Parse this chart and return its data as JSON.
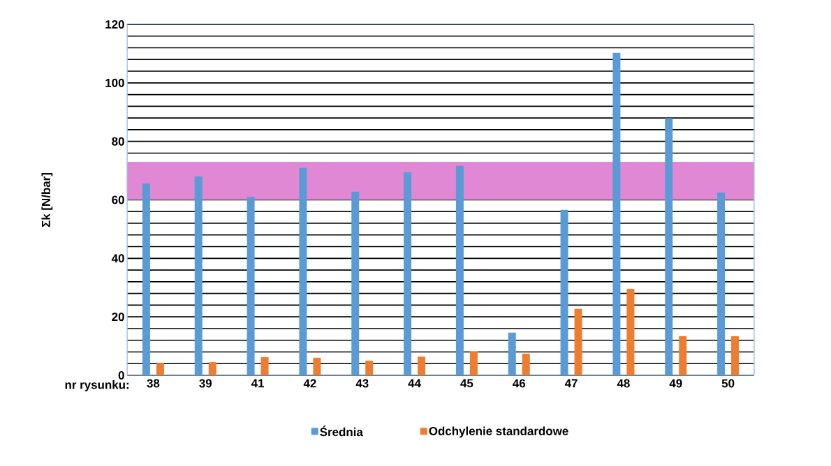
{
  "chart_data": {
    "type": "bar",
    "ylabel": "Σk [N/bar]",
    "xlabel": "nr rysunku:",
    "categories": [
      "38",
      "39",
      "41",
      "42",
      "43",
      "44",
      "45",
      "46",
      "47",
      "48",
      "49",
      "50"
    ],
    "series": [
      {
        "name": "Średnia",
        "color": "#5b9bd5",
        "values": [
          65.6,
          68,
          61,
          71,
          62.8,
          69.5,
          71.6,
          14.6,
          56.6,
          110.3,
          88,
          62.5
        ]
      },
      {
        "name": "Odchylenie standardowe",
        "color": "#ed7d31",
        "values": [
          4.1,
          4.5,
          6.2,
          6,
          5,
          6.4,
          8.1,
          7.4,
          22.7,
          29.6,
          13.4,
          13.4
        ]
      }
    ],
    "ylim": [
      0,
      120
    ],
    "yticks": [
      0,
      {
        "value": 4,
        "label": null
      },
      {
        "value": 8,
        "label": null
      },
      {
        "value": 12,
        "label": null
      },
      {
        "value": 16,
        "label": null
      },
      20,
      {
        "value": 24,
        "label": null
      },
      {
        "value": 28,
        "label": null
      },
      {
        "value": 32,
        "label": null
      },
      {
        "value": 36,
        "label": null
      },
      40,
      {
        "value": 44,
        "label": null
      },
      {
        "value": 48,
        "label": null
      },
      {
        "value": 52,
        "label": null
      },
      {
        "value": 56,
        "label": null
      },
      60,
      {
        "value": 64,
        "label": null
      },
      {
        "value": 68,
        "label": null
      },
      {
        "value": 72,
        "label": null
      },
      {
        "value": 76,
        "label": null
      },
      80,
      {
        "value": 84,
        "label": null
      },
      {
        "value": 88,
        "label": null
      },
      {
        "value": 92,
        "label": null
      },
      {
        "value": 96,
        "label": null
      },
      100,
      {
        "value": 104,
        "label": null
      },
      {
        "value": 108,
        "label": null
      },
      {
        "value": 112,
        "label": null
      },
      {
        "value": 116,
        "label": null
      },
      120
    ],
    "bands": [
      {
        "axis": "y",
        "from": 60,
        "to": 73,
        "color": "#e088d4"
      }
    ],
    "grid": "y",
    "legend": "bottom"
  }
}
